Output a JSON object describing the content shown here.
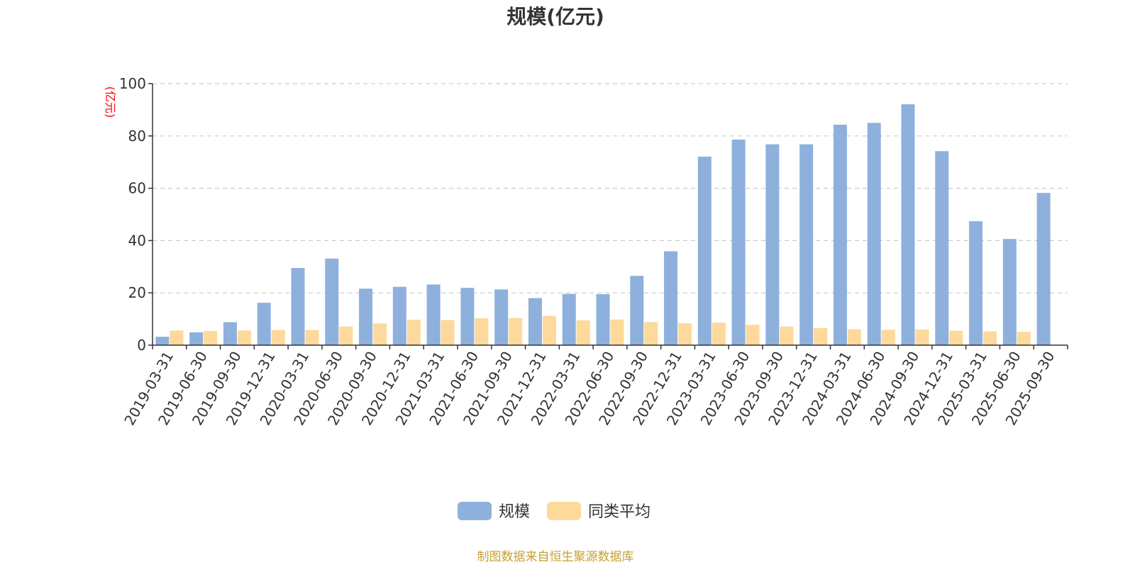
{
  "chart_data": {
    "type": "bar",
    "title": "规模(亿元)",
    "ylabel": "(亿元)",
    "xlabel": "",
    "ylim": [
      0,
      100
    ],
    "yticks": [
      0,
      20,
      40,
      60,
      80,
      100
    ],
    "grid": "horizontal-dashed",
    "legend_position": "bottom-center",
    "categories": [
      "2019-03-31",
      "2019-06-30",
      "2019-09-30",
      "2019-12-31",
      "2020-03-31",
      "2020-06-30",
      "2020-09-30",
      "2020-12-31",
      "2021-03-31",
      "2021-06-30",
      "2021-09-30",
      "2021-12-31",
      "2022-03-31",
      "2022-06-30",
      "2022-09-30",
      "2022-12-31",
      "2023-03-31",
      "2023-06-30",
      "2023-09-30",
      "2023-12-31",
      "2024-03-31",
      "2024-06-30",
      "2024-09-30",
      "2024-12-31",
      "2025-03-31",
      "2025-06-30",
      "2025-09-30"
    ],
    "series": [
      {
        "name": "规模",
        "color": "#8eb0dc",
        "values": [
          3.2,
          4.9,
          8.8,
          16.2,
          29.5,
          33.1,
          21.6,
          22.3,
          23.2,
          21.9,
          21.3,
          18.0,
          19.6,
          19.5,
          26.5,
          35.9,
          72.1,
          78.6,
          76.8,
          76.8,
          84.3,
          85.0,
          92.1,
          74.2,
          47.4,
          40.6,
          58.2
        ]
      },
      {
        "name": "同类平均",
        "color": "#fdd99b",
        "values": [
          5.6,
          5.4,
          5.6,
          5.8,
          5.8,
          7.1,
          8.3,
          9.7,
          9.6,
          10.3,
          10.4,
          11.2,
          9.5,
          9.8,
          8.8,
          8.4,
          8.6,
          7.8,
          7.1,
          6.5,
          6.1,
          5.9,
          6.0,
          5.5,
          5.3,
          5.1,
          0
        ]
      }
    ]
  },
  "footer": "制图数据来自恒生聚源数据库"
}
